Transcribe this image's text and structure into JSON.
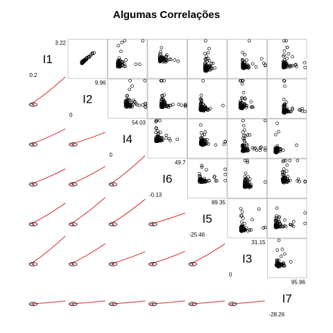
{
  "chart_data": {
    "type": "scatter",
    "title": "Algumas Correlações",
    "variables": [
      {
        "name": "I1",
        "min": "0.2",
        "max": "3.22"
      },
      {
        "name": "I2",
        "min": "0",
        "max": "9.96"
      },
      {
        "name": "I4",
        "min": "0",
        "max": "54.03"
      },
      {
        "name": "I6",
        "min": "-0.13",
        "max": "49.7"
      },
      {
        "name": "I5",
        "min": "-25.46",
        "max": "89.35"
      },
      {
        "name": "I3",
        "min": "0",
        "max": "31.15"
      },
      {
        "name": "I7",
        "min": "-28.26",
        "max": "95.96"
      }
    ],
    "upper_panel": "scatter",
    "lower_panel": "smooth-line",
    "colors": {
      "points": "#000000",
      "smooth": "#d62728",
      "ellipse": "#000000",
      "border": "#bbbbbb"
    }
  }
}
